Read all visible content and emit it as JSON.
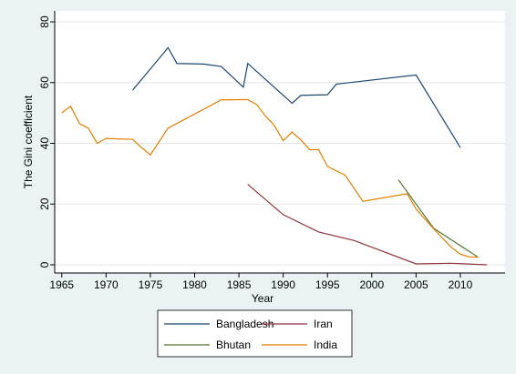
{
  "chart_data": {
    "type": "line",
    "x_label": "Year",
    "y_label": "The Gini coefficient",
    "xlim": [
      1964.2,
      2015.05
    ],
    "ylim": [
      -2.7,
      83.6
    ],
    "xticks": [
      1965,
      1970,
      1975,
      1980,
      1985,
      1990,
      1995,
      2000,
      2005,
      2010
    ],
    "yticks": [
      0,
      20,
      40,
      60,
      80
    ],
    "grid": true,
    "legend": "bottom",
    "series": [
      {
        "name": "Bangladesh",
        "color": "#1a476f",
        "x": [
          1973,
          1977,
          1978,
          1981,
          1983,
          1985.5,
          1986,
          1991,
          1992,
          1995,
          1996,
          2005,
          2010
        ],
        "values": [
          57.5,
          71.5,
          66.3,
          66.1,
          65.3,
          58.5,
          66.3,
          53.2,
          55.8,
          56,
          59.5,
          62.5,
          38.6
        ]
      },
      {
        "name": "Iran",
        "color": "#90353b",
        "x": [
          1986,
          1990,
          1994,
          1998,
          2005,
          2009,
          2013
        ],
        "values": [
          26.5,
          16.5,
          10.8,
          8,
          0.3,
          0.5,
          0
        ]
      },
      {
        "name": "Bhutan",
        "color": "#55752f",
        "x": [
          2003,
          2007,
          2012
        ],
        "values": [
          28,
          12,
          2.5
        ]
      },
      {
        "name": "India",
        "color": "#e37e00",
        "x": [
          1965,
          1966,
          1967,
          1968,
          1969,
          1970,
          1973,
          1974,
          1975,
          1977,
          1983,
          1986,
          1987,
          1988,
          1989,
          1990,
          1991,
          1992,
          1993,
          1994,
          1995,
          1997,
          1999,
          2004,
          2005,
          2007,
          2009,
          2010,
          2011,
          2012
        ],
        "values": [
          50,
          52.2,
          46.5,
          45,
          40,
          41.6,
          41.3,
          38.6,
          36.2,
          45,
          54.3,
          54.4,
          52.8,
          49,
          45.9,
          40.9,
          43.7,
          41.1,
          37.9,
          37.9,
          32.4,
          29.5,
          20.9,
          23.4,
          18.4,
          11.8,
          5.7,
          3.5,
          2.6,
          2.5
        ]
      }
    ]
  }
}
